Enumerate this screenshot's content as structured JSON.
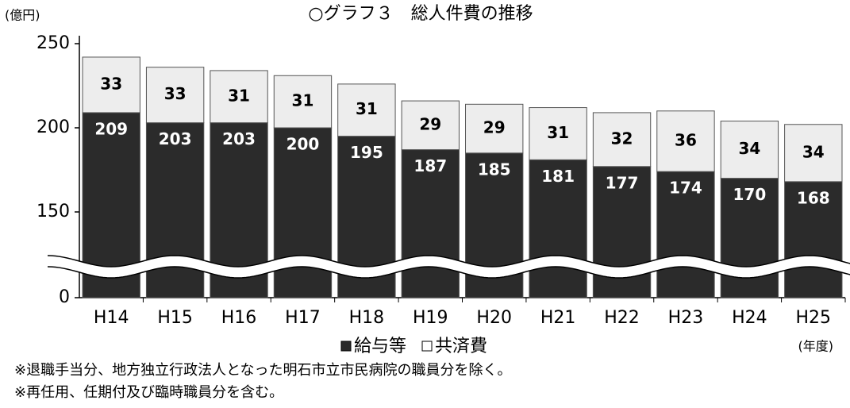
{
  "chart_data": {
    "type": "stacked_bar",
    "title": "○グラフ３　総人件費の推移",
    "y_unit": "(億円)",
    "x_unit": "(年度)",
    "notes": [
      "※退職手当分、地方独立行政法人となった明石市立市民病院の職員分を除く。",
      "※再任用、任期付及び臨時職員分を含む。"
    ],
    "categories": [
      "H14",
      "H15",
      "H16",
      "H17",
      "H18",
      "H19",
      "H20",
      "H21",
      "H22",
      "H23",
      "H24",
      "H25"
    ],
    "series": [
      {
        "name": "給与等",
        "color": "#2b2b2b",
        "values": [
          209,
          203,
          203,
          200,
          195,
          187,
          185,
          181,
          177,
          174,
          170,
          168
        ]
      },
      {
        "name": "共済費",
        "color": "#ededed",
        "values": [
          33,
          33,
          31,
          31,
          31,
          29,
          29,
          31,
          32,
          36,
          34,
          34
        ]
      }
    ],
    "ylim": [
      0,
      250
    ],
    "yticks": [
      0,
      150,
      200,
      250
    ],
    "axis_break": [
      0,
      150
    ]
  }
}
